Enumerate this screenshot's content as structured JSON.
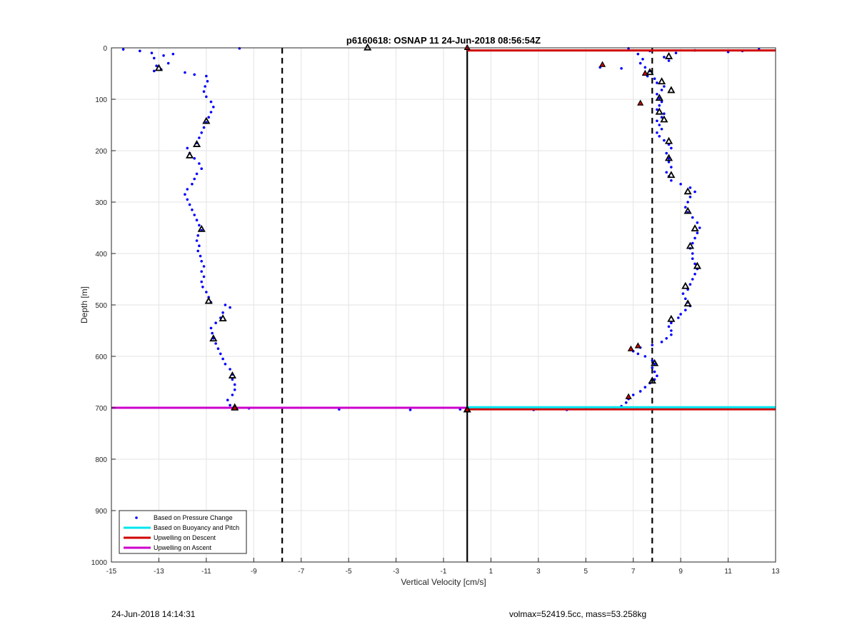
{
  "footer": {
    "timestamp": "24-Jun-2018 14:14:31",
    "info": "volmax=52419.5cc, mass=53.258kg"
  },
  "chart_data": {
    "type": "scatter",
    "title": "p6160618: OSNAP 11 24-Jun-2018 08:56:54Z",
    "xlabel": "Vertical Velocity [cm/s]",
    "ylabel": "Depth [m]",
    "xlim": [
      -15,
      13
    ],
    "ylim": [
      0,
      1000
    ],
    "y_reversed": true,
    "grid": true,
    "xticks": [
      -15,
      -13,
      -11,
      -9,
      -7,
      -5,
      -3,
      -1,
      1,
      3,
      5,
      7,
      9,
      11,
      13
    ],
    "yticks": [
      0,
      100,
      200,
      300,
      400,
      500,
      600,
      700,
      800,
      900,
      1000
    ],
    "legend": {
      "placement": "bottom-left",
      "entries": [
        {
          "label": "Based on Pressure Change",
          "color": "#0000ff",
          "style": "dot"
        },
        {
          "label": "Based on Buoyancy and Pitch",
          "color": "#00e5ee",
          "style": "line"
        },
        {
          "label": "Upwelling on Descent",
          "color": "#d00000",
          "style": "line"
        },
        {
          "label": "Upwelling on Ascent",
          "color": "#cc00cc",
          "style": "line"
        }
      ]
    },
    "reference_lines": [
      {
        "axis": "x",
        "value": -7.8,
        "color": "#000000",
        "style": "dashed"
      },
      {
        "axis": "x",
        "value": 7.8,
        "color": "#000000",
        "style": "dashed"
      },
      {
        "axis": "x",
        "value": 0,
        "color": "#000000",
        "style": "solid"
      }
    ],
    "series": [
      {
        "name": "Based on Pressure Change",
        "color": "#0000ff",
        "points": [
          [
            -14.5,
            3
          ],
          [
            -13.8,
            6
          ],
          [
            -13.3,
            10
          ],
          [
            -13.2,
            20
          ],
          [
            -12.8,
            15
          ],
          [
            -12.4,
            12
          ],
          [
            -12.6,
            30
          ],
          [
            -13.1,
            35
          ],
          [
            -12.9,
            42
          ],
          [
            -13.2,
            45
          ],
          [
            -11.9,
            48
          ],
          [
            -9.6,
            1
          ],
          [
            -11.5,
            52
          ],
          [
            -11.0,
            55
          ],
          [
            -10.95,
            65
          ],
          [
            -11.05,
            75
          ],
          [
            -11.1,
            85
          ],
          [
            -11.0,
            95
          ],
          [
            -10.8,
            105
          ],
          [
            -10.7,
            115
          ],
          [
            -10.8,
            125
          ],
          [
            -10.9,
            135
          ],
          [
            -11.0,
            145
          ],
          [
            -11.1,
            155
          ],
          [
            -11.2,
            165
          ],
          [
            -11.3,
            175
          ],
          [
            -11.4,
            185
          ],
          [
            -11.8,
            195
          ],
          [
            -11.7,
            205
          ],
          [
            -11.5,
            215
          ],
          [
            -11.3,
            225
          ],
          [
            -11.2,
            235
          ],
          [
            -11.4,
            245
          ],
          [
            -11.5,
            255
          ],
          [
            -11.6,
            265
          ],
          [
            -11.8,
            275
          ],
          [
            -11.9,
            285
          ],
          [
            -11.8,
            295
          ],
          [
            -11.7,
            305
          ],
          [
            -11.6,
            315
          ],
          [
            -11.5,
            325
          ],
          [
            -11.4,
            335
          ],
          [
            -11.3,
            345
          ],
          [
            -11.2,
            355
          ],
          [
            -11.35,
            365
          ],
          [
            -11.4,
            375
          ],
          [
            -11.3,
            385
          ],
          [
            -11.35,
            395
          ],
          [
            -11.25,
            405
          ],
          [
            -11.2,
            415
          ],
          [
            -11.1,
            425
          ],
          [
            -11.2,
            435
          ],
          [
            -11.1,
            445
          ],
          [
            -11.2,
            455
          ],
          [
            -11.15,
            465
          ],
          [
            -11.0,
            475
          ],
          [
            -10.9,
            485
          ],
          [
            -10.8,
            495
          ],
          [
            -10.2,
            500
          ],
          [
            -10.0,
            505
          ],
          [
            -10.3,
            515
          ],
          [
            -10.4,
            525
          ],
          [
            -10.6,
            535
          ],
          [
            -10.8,
            545
          ],
          [
            -10.75,
            555
          ],
          [
            -10.7,
            565
          ],
          [
            -10.6,
            575
          ],
          [
            -10.5,
            585
          ],
          [
            -10.4,
            595
          ],
          [
            -10.3,
            605
          ],
          [
            -10.2,
            615
          ],
          [
            -10.0,
            625
          ],
          [
            -9.9,
            635
          ],
          [
            -9.9,
            645
          ],
          [
            -9.8,
            655
          ],
          [
            -9.8,
            665
          ],
          [
            -9.9,
            675
          ],
          [
            -10.1,
            685
          ],
          [
            -10.0,
            695
          ],
          [
            -9.8,
            700
          ],
          [
            -9.2,
            701
          ],
          [
            -5.4,
            703
          ],
          [
            -2.4,
            704
          ],
          [
            -0.3,
            703
          ],
          [
            2.8,
            704
          ],
          [
            4.2,
            704
          ],
          [
            5.0,
            701
          ],
          [
            6.2,
            702
          ],
          [
            6.5,
            697
          ],
          [
            6.7,
            690
          ],
          [
            6.8,
            683
          ],
          [
            7.0,
            675
          ],
          [
            7.3,
            668
          ],
          [
            7.5,
            660
          ],
          [
            7.7,
            652
          ],
          [
            7.9,
            645
          ],
          [
            8.0,
            638
          ],
          [
            7.9,
            630
          ],
          [
            7.8,
            622
          ],
          [
            7.9,
            615
          ],
          [
            7.8,
            608
          ],
          [
            7.5,
            600
          ],
          [
            7.2,
            595
          ],
          [
            7.0,
            590
          ],
          [
            7.3,
            583
          ],
          [
            7.8,
            578
          ],
          [
            8.2,
            572
          ],
          [
            8.4,
            565
          ],
          [
            8.6,
            558
          ],
          [
            8.6,
            550
          ],
          [
            8.5,
            542
          ],
          [
            8.6,
            535
          ],
          [
            8.9,
            525
          ],
          [
            9.0,
            518
          ],
          [
            9.2,
            510
          ],
          [
            9.4,
            502
          ],
          [
            9.3,
            495
          ],
          [
            9.2,
            488
          ],
          [
            9.1,
            478
          ],
          [
            9.3,
            470
          ],
          [
            9.4,
            460
          ],
          [
            9.5,
            450
          ],
          [
            9.6,
            440
          ],
          [
            9.7,
            430
          ],
          [
            9.6,
            420
          ],
          [
            9.5,
            410
          ],
          [
            9.5,
            400
          ],
          [
            9.4,
            390
          ],
          [
            9.5,
            380
          ],
          [
            9.6,
            370
          ],
          [
            9.7,
            360
          ],
          [
            9.8,
            350
          ],
          [
            9.7,
            340
          ],
          [
            9.5,
            330
          ],
          [
            9.3,
            320
          ],
          [
            9.2,
            310
          ],
          [
            9.3,
            300
          ],
          [
            9.4,
            290
          ],
          [
            9.6,
            280
          ],
          [
            9.4,
            272
          ],
          [
            9.0,
            265
          ],
          [
            8.6,
            258
          ],
          [
            8.5,
            250
          ],
          [
            8.4,
            242
          ],
          [
            8.6,
            232
          ],
          [
            8.5,
            222
          ],
          [
            8.5,
            215
          ],
          [
            8.4,
            205
          ],
          [
            8.6,
            195
          ],
          [
            8.5,
            188
          ],
          [
            8.3,
            180
          ],
          [
            8.1,
            172
          ],
          [
            8.0,
            165
          ],
          [
            8.2,
            158
          ],
          [
            8.1,
            150
          ],
          [
            8.0,
            142
          ],
          [
            8.2,
            135
          ],
          [
            8.3,
            128
          ],
          [
            8.0,
            120
          ],
          [
            8.1,
            112
          ],
          [
            8.2,
            105
          ],
          [
            8.1,
            98
          ],
          [
            8.0,
            90
          ],
          [
            8.2,
            82
          ],
          [
            8.3,
            75
          ],
          [
            8.0,
            68
          ],
          [
            7.9,
            60
          ],
          [
            7.6,
            55
          ],
          [
            7.5,
            50
          ],
          [
            7.7,
            45
          ],
          [
            7.5,
            38
          ],
          [
            7.3,
            30
          ],
          [
            7.4,
            22
          ],
          [
            8.3,
            18
          ],
          [
            8.5,
            25
          ],
          [
            8.8,
            10
          ],
          [
            9.6,
            5
          ],
          [
            11.0,
            8
          ],
          [
            11.6,
            6
          ],
          [
            12.3,
            3
          ],
          [
            6.8,
            1
          ],
          [
            5.7,
            33
          ],
          [
            5.6,
            38
          ],
          [
            6.5,
            40
          ],
          [
            7.7,
            6
          ],
          [
            7.2,
            12
          ]
        ]
      },
      {
        "name": "Upwelling on Descent",
        "color": "#d00000",
        "segments": [
          {
            "x": [
              0,
              13
            ],
            "y": [
              5,
              5
            ]
          },
          {
            "x": [
              0,
              13
            ],
            "y": [
              703,
              703
            ]
          }
        ]
      },
      {
        "name": "Based on Buoyancy and Pitch",
        "color": "#00e5ee",
        "segments": [
          {
            "x": [
              0,
              13
            ],
            "y": [
              699,
              699
            ]
          }
        ]
      },
      {
        "name": "Upwelling on Ascent",
        "color": "#cc00cc",
        "segments": [
          {
            "x": [
              -15,
              0
            ],
            "y": [
              700,
              700
            ]
          }
        ]
      },
      {
        "name": "",
        "color": "#000000",
        "style": "open-triangle",
        "points": [
          [
            -4.2,
            0
          ],
          [
            -13.0,
            40
          ],
          [
            -11.0,
            143
          ],
          [
            -11.4,
            188
          ],
          [
            -11.7,
            210
          ],
          [
            -11.2,
            353
          ],
          [
            -10.9,
            493
          ],
          [
            -10.3,
            527
          ],
          [
            -10.7,
            566
          ],
          [
            -9.9,
            638
          ],
          [
            -9.8,
            700
          ],
          [
            8.5,
            17
          ],
          [
            7.7,
            48
          ],
          [
            8.2,
            66
          ],
          [
            8.6,
            83
          ],
          [
            8.1,
            98
          ],
          [
            8.1,
            125
          ],
          [
            8.3,
            140
          ],
          [
            8.5,
            182
          ],
          [
            8.5,
            215
          ],
          [
            8.6,
            248
          ],
          [
            9.3,
            280
          ],
          [
            9.3,
            318
          ],
          [
            9.6,
            352
          ],
          [
            9.4,
            386
          ],
          [
            9.7,
            425
          ],
          [
            9.2,
            464
          ],
          [
            9.3,
            498
          ],
          [
            8.6,
            528
          ],
          [
            7.9,
            614
          ],
          [
            7.8,
            648
          ],
          [
            0.0,
            704
          ]
        ]
      },
      {
        "name": "",
        "color": "#d00000",
        "style": "filled-triangle",
        "points": [
          [
            0.0,
            0
          ],
          [
            5.7,
            33
          ],
          [
            7.5,
            50
          ],
          [
            7.3,
            108
          ],
          [
            6.9,
            586
          ],
          [
            7.2,
            580
          ],
          [
            6.8,
            679
          ],
          [
            -9.8,
            701
          ],
          [
            0.0,
            704
          ]
        ]
      }
    ]
  }
}
